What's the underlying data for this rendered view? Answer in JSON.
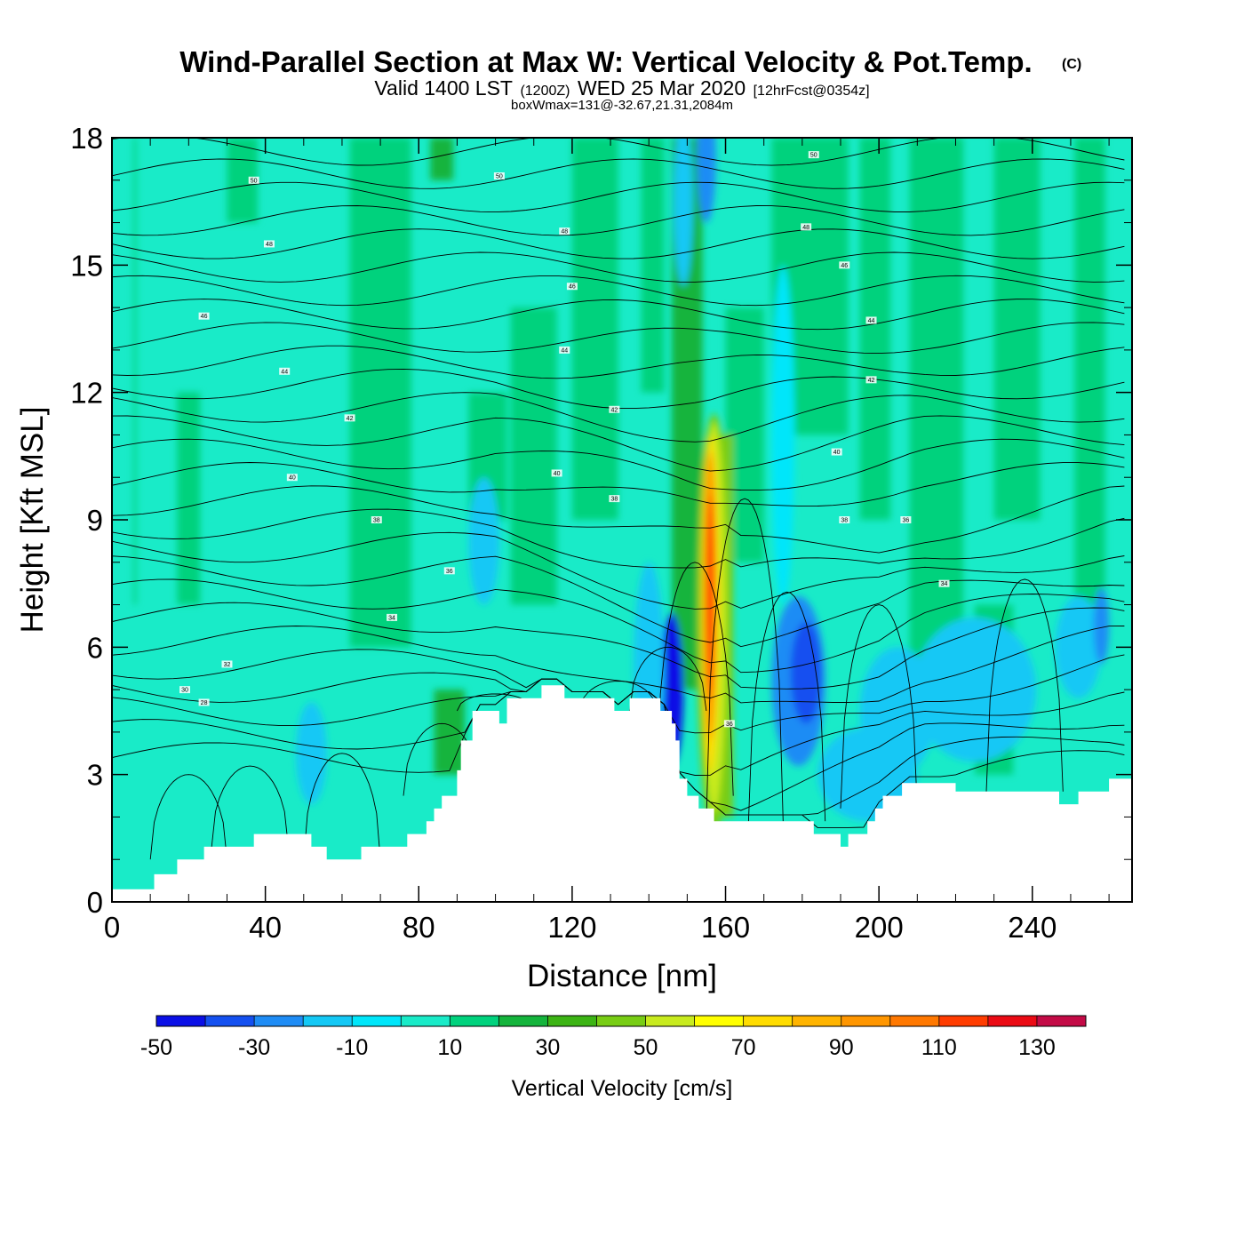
{
  "title": {
    "main": "Wind-Parallel Section at Max W: Vertical Velocity & Pot.Temp.",
    "copyright": "(C)",
    "valid_prefix": "Valid 1400 LST",
    "valid_utc": "(1200Z)",
    "valid_date": "WED 25 Mar 2020",
    "forecast": "[12hrFcst@0354z]",
    "box_info": "boxWmax=131@-32.67,21.31,2084m"
  },
  "chart_data": {
    "type": "heatmap",
    "xlabel": "Distance [nm]",
    "ylabel": "Height [Kft MSL]",
    "xlim": [
      0,
      266
    ],
    "ylim": [
      0,
      18
    ],
    "x_ticks": [
      0,
      40,
      80,
      120,
      160,
      200,
      240
    ],
    "y_ticks": [
      0,
      3,
      6,
      9,
      12,
      15,
      18
    ],
    "colorbar": {
      "label": "Vertical Velocity [cm/s]",
      "ticks": [
        -50,
        -30,
        -10,
        10,
        30,
        50,
        70,
        90,
        110,
        130
      ],
      "levels": [
        -50,
        -40,
        -30,
        -20,
        -10,
        0,
        10,
        20,
        30,
        40,
        50,
        60,
        70,
        80,
        90,
        100,
        110,
        120,
        130,
        140
      ],
      "colors": [
        "#0a0fe6",
        "#1450f0",
        "#1e8cf5",
        "#14c8f5",
        "#00e6fa",
        "#19ebc8",
        "#00d27d",
        "#14b43c",
        "#3cb414",
        "#78cd14",
        "#c8eb1e",
        "#ffff00",
        "#ffdc00",
        "#ffb400",
        "#ff9600",
        "#ff7800",
        "#ff3c00",
        "#eb0a14",
        "#c30a46"
      ]
    },
    "terrain_kft": [
      [
        0,
        0.3
      ],
      [
        11,
        0.3
      ],
      [
        11,
        0.65
      ],
      [
        17,
        0.65
      ],
      [
        17,
        1.0
      ],
      [
        24,
        1.0
      ],
      [
        24,
        1.3
      ],
      [
        37,
        1.3
      ],
      [
        37,
        1.6
      ],
      [
        52,
        1.6
      ],
      [
        52,
        1.3
      ],
      [
        56,
        1.3
      ],
      [
        56,
        1.0
      ],
      [
        65,
        1.0
      ],
      [
        65,
        1.3
      ],
      [
        77,
        1.3
      ],
      [
        77,
        1.6
      ],
      [
        82,
        1.6
      ],
      [
        82,
        1.9
      ],
      [
        84,
        1.9
      ],
      [
        84,
        2.2
      ],
      [
        86,
        2.2
      ],
      [
        86,
        2.5
      ],
      [
        90,
        2.5
      ],
      [
        90,
        3.1
      ],
      [
        91,
        3.1
      ],
      [
        91,
        3.8
      ],
      [
        94,
        3.8
      ],
      [
        94,
        4.5
      ],
      [
        101,
        4.5
      ],
      [
        101,
        4.2
      ],
      [
        103,
        4.2
      ],
      [
        103,
        4.8
      ],
      [
        112,
        4.8
      ],
      [
        112,
        5.1
      ],
      [
        118,
        5.1
      ],
      [
        118,
        4.8
      ],
      [
        131,
        4.8
      ],
      [
        131,
        4.5
      ],
      [
        135,
        4.5
      ],
      [
        135,
        4.8
      ],
      [
        143,
        4.8
      ],
      [
        143,
        4.5
      ],
      [
        146,
        4.5
      ],
      [
        146,
        4.2
      ],
      [
        147,
        4.2
      ],
      [
        147,
        3.8
      ],
      [
        148,
        3.8
      ],
      [
        148,
        2.9
      ],
      [
        150,
        2.9
      ],
      [
        150,
        2.5
      ],
      [
        153,
        2.5
      ],
      [
        153,
        2.2
      ],
      [
        157,
        2.2
      ],
      [
        157,
        1.9
      ],
      [
        183,
        1.9
      ],
      [
        183,
        1.6
      ],
      [
        190,
        1.6
      ],
      [
        190,
        1.3
      ],
      [
        192,
        1.3
      ],
      [
        192,
        1.6
      ],
      [
        197,
        1.6
      ],
      [
        197,
        1.9
      ],
      [
        199,
        1.9
      ],
      [
        199,
        2.2
      ],
      [
        201,
        2.2
      ],
      [
        201,
        2.5
      ],
      [
        206,
        2.5
      ],
      [
        206,
        2.8
      ],
      [
        220,
        2.8
      ],
      [
        220,
        2.6
      ],
      [
        247,
        2.6
      ],
      [
        247,
        2.3
      ],
      [
        252,
        2.3
      ],
      [
        252,
        2.6
      ],
      [
        260,
        2.6
      ],
      [
        260,
        2.9
      ],
      [
        266,
        2.9
      ]
    ],
    "theta_contours": [
      {
        "label": "28",
        "x": 24,
        "y": 4.7
      },
      {
        "label": "30",
        "x": 19,
        "y": 5.0
      },
      {
        "label": "32",
        "x": 30,
        "y": 5.6
      },
      {
        "label": "34",
        "x": 73,
        "y": 6.7
      },
      {
        "label": "36",
        "x": 88,
        "y": 7.8
      },
      {
        "label": "38",
        "x": 69,
        "y": 9.0
      },
      {
        "label": "40",
        "x": 47,
        "y": 10.0
      },
      {
        "label": "42",
        "x": 62,
        "y": 11.4
      },
      {
        "label": "44",
        "x": 45,
        "y": 12.5
      },
      {
        "label": "46",
        "x": 24,
        "y": 13.8
      },
      {
        "label": "48",
        "x": 41,
        "y": 15.5
      },
      {
        "label": "50",
        "x": 37,
        "y": 17.0
      },
      {
        "label": "50",
        "x": 101,
        "y": 17.1
      },
      {
        "label": "48",
        "x": 118,
        "y": 15.8
      },
      {
        "label": "46",
        "x": 120,
        "y": 14.5
      },
      {
        "label": "44",
        "x": 118,
        "y": 13.0
      },
      {
        "label": "42",
        "x": 131,
        "y": 11.6
      },
      {
        "label": "40",
        "x": 116,
        "y": 10.1
      },
      {
        "label": "38",
        "x": 131,
        "y": 9.5
      },
      {
        "label": "36",
        "x": 161,
        "y": 4.2
      },
      {
        "label": "50",
        "x": 183,
        "y": 17.6
      },
      {
        "label": "48",
        "x": 181,
        "y": 15.9
      },
      {
        "label": "46",
        "x": 191,
        "y": 15.0
      },
      {
        "label": "44",
        "x": 198,
        "y": 13.7
      },
      {
        "label": "42",
        "x": 198,
        "y": 12.3
      },
      {
        "label": "40",
        "x": 189,
        "y": 10.6
      },
      {
        "label": "38",
        "x": 191,
        "y": 9.0
      },
      {
        "label": "36",
        "x": 207,
        "y": 9.0
      },
      {
        "label": "34",
        "x": 217,
        "y": 7.5
      }
    ]
  }
}
